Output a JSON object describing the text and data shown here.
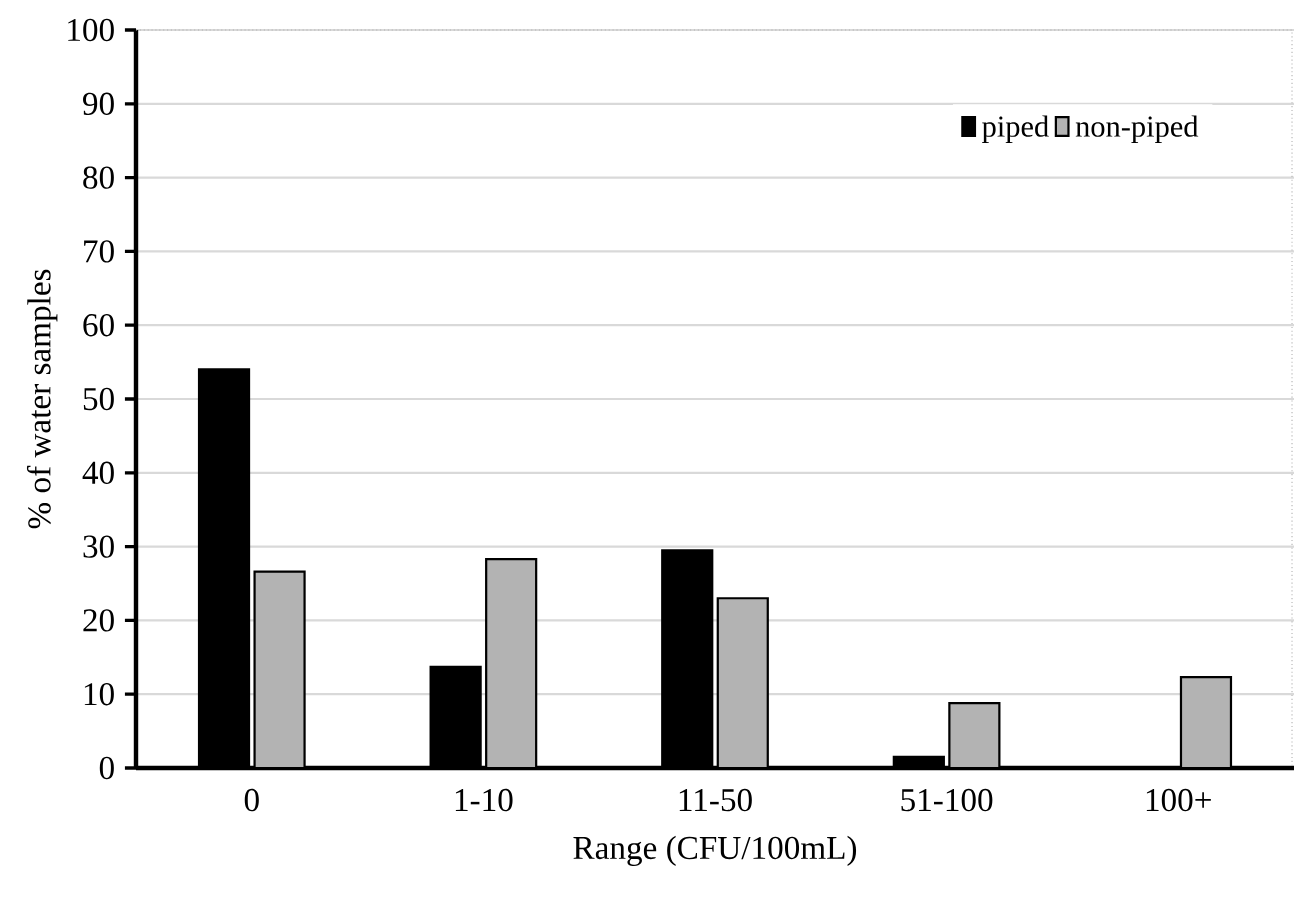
{
  "chart_data": {
    "type": "bar",
    "xlabel": "Range (CFU/100mL)",
    "ylabel": "% of water samples",
    "categories": [
      "0",
      "1-10",
      "11-50",
      "51-100",
      "100+"
    ],
    "series": [
      {
        "name": "piped",
        "color": "#000000",
        "values": [
          54,
          13.7,
          29.5,
          1.5,
          0
        ]
      },
      {
        "name": "non-piped",
        "color": "#b3b3b3",
        "values": [
          26.6,
          28.3,
          23,
          8.8,
          12.3
        ]
      }
    ],
    "ylim": [
      0,
      100
    ],
    "yticks": [
      0,
      10,
      20,
      30,
      40,
      50,
      60,
      70,
      80,
      90,
      100
    ],
    "grid": "y",
    "legend": "top right"
  }
}
